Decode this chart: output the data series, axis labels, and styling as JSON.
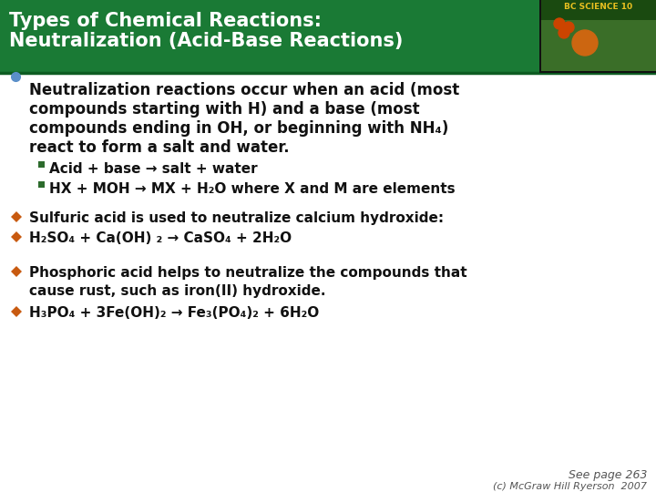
{
  "title_line1": "Types of Chemical Reactions:",
  "title_line2": "Neutralization (Acid-Base Reactions)",
  "title_bg_color": "#1a7a35",
  "title_text_color": "#ffffff",
  "body_bg_color": "#ffffff",
  "bullet_color_blue": "#5b8fc9",
  "bullet_color_orange": "#c85a10",
  "sub_bullet_color": "#2d6b2d",
  "main_bullet_line1": "Neutralization reactions occur when an acid (most",
  "main_bullet_line2": "compounds starting with H) and a base (most",
  "main_bullet_line3": "compounds ending in OH, or beginning with NH₄)",
  "main_bullet_line4": "react to form a salt and water.",
  "sub_bullet1": "Acid + base → salt + water",
  "sub_bullet2": "HX + MOH → MX + H₂O where X and M are elements",
  "bullet2_bold": "Sulfuric acid is used to neutralize calcium hydroxide:",
  "bullet2_formula": "H₂SO₄ + Ca(OH) ₂ → CaSO₄ + 2H₂O",
  "bullet3_bold_line1": "Phosphoric acid helps to neutralize the compounds that",
  "bullet3_bold_line2": "cause rust, such as iron(II) hydroxide.",
  "bullet3_formula": "H₃PO₄ + 3Fe(OH)₂ → Fe₃(PO₄)₂ + 6H₂O",
  "footer1": "See page 263",
  "footer2": "(c) McGraw Hill Ryerson  2007"
}
